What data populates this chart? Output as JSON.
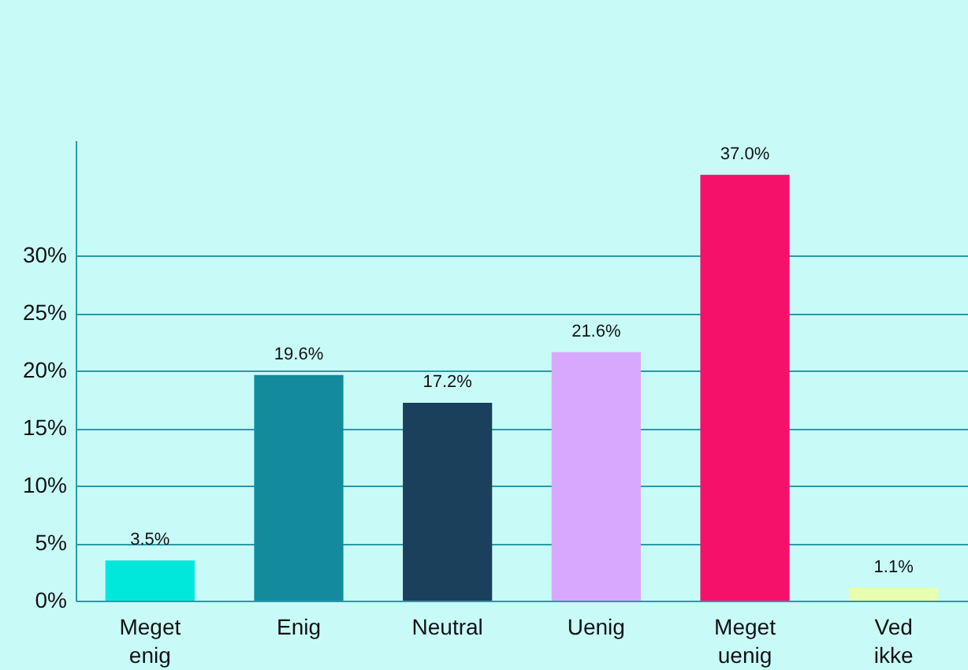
{
  "chart_data": {
    "type": "bar",
    "categories": [
      "Meget enig",
      "Enig",
      "Neutral",
      "Uenig",
      "Meget uenig",
      "Ved ikke"
    ],
    "values": [
      3.5,
      19.6,
      17.2,
      21.6,
      37.0,
      1.1
    ],
    "colors": [
      "#00e8dc",
      "#138a9e",
      "#1a405c",
      "#d8a8ff",
      "#f5116a",
      "#e8ffb0"
    ],
    "value_labels": [
      "3.5%",
      "19.6%",
      "17.2%",
      "21.6%",
      "37.0%",
      "1.1%"
    ],
    "ylim": [
      0,
      40
    ],
    "yticks": [
      {
        "value": 0,
        "label": "0%"
      },
      {
        "value": 5,
        "label": "5%"
      },
      {
        "value": 10,
        "label": "10%"
      },
      {
        "value": 15,
        "label": "15%"
      },
      {
        "value": 20,
        "label": "20%"
      },
      {
        "value": 25,
        "label": "25%"
      },
      {
        "value": 30,
        "label": "30%"
      }
    ],
    "grid": "y",
    "legend": false
  }
}
